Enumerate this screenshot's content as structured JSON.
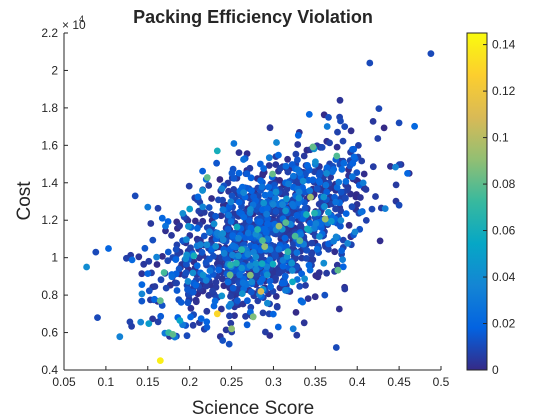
{
  "chart_data": {
    "type": "scatter",
    "title": "Packing Efficiency Violation",
    "xlabel": "Science Score",
    "ylabel": "Cost",
    "xlim": [
      0.05,
      0.5
    ],
    "ylim": [
      4000,
      22000
    ],
    "x_ticks": [
      "0.05",
      "0.1",
      "0.15",
      "0.2",
      "0.25",
      "0.3",
      "0.35",
      "0.4",
      "0.45",
      "0.5"
    ],
    "y_ticks": [
      "0.4",
      "0.6",
      "0.8",
      "1",
      "1.2",
      "1.4",
      "1.6",
      "1.8",
      "2",
      "2.2"
    ],
    "y_exponent_base": "× 10",
    "y_exponent_power": "4",
    "colorbar": {
      "colormap": "parula",
      "clim": [
        0,
        0.145
      ],
      "ticks": [
        "0",
        "0.02",
        "0.04",
        "0.06",
        "0.08",
        "0.1",
        "0.12",
        "0.14"
      ]
    },
    "grid": false,
    "cloud": {
      "n_points": 1400,
      "x_mean": 0.29,
      "x_sd": 0.065,
      "y_mean": 11300,
      "y_sd": 2300,
      "correlation": 0.55
    },
    "highlighted_points": [
      {
        "x": 0.488,
        "y": 20900,
        "c": 0.01
      },
      {
        "x": 0.415,
        "y": 20400,
        "c": 0.01
      },
      {
        "x": 0.088,
        "y": 10300,
        "c": 0.01
      },
      {
        "x": 0.077,
        "y": 9500,
        "c": 0.04
      },
      {
        "x": 0.09,
        "y": 6800,
        "c": 0.01
      },
      {
        "x": 0.165,
        "y": 4500,
        "c": 0.14
      },
      {
        "x": 0.233,
        "y": 15700,
        "c": 0.06
      },
      {
        "x": 0.233,
        "y": 7000,
        "c": 0.13
      },
      {
        "x": 0.285,
        "y": 8200,
        "c": 0.11
      },
      {
        "x": 0.205,
        "y": 10100,
        "c": 0.06
      },
      {
        "x": 0.25,
        "y": 6200,
        "c": 0.09
      },
      {
        "x": 0.375,
        "y": 5200,
        "c": 0.01
      },
      {
        "x": 0.38,
        "y": 17300,
        "c": 0.01
      },
      {
        "x": 0.45,
        "y": 17200,
        "c": 0.01
      },
      {
        "x": 0.385,
        "y": 17000,
        "c": 0.01
      },
      {
        "x": 0.15,
        "y": 12700,
        "c": 0.03
      },
      {
        "x": 0.135,
        "y": 13300,
        "c": 0.01
      },
      {
        "x": 0.46,
        "y": 14500,
        "c": 0.02
      },
      {
        "x": 0.45,
        "y": 12800,
        "c": 0.01
      },
      {
        "x": 0.2,
        "y": 12600,
        "c": 0.05
      },
      {
        "x": 0.18,
        "y": 5900,
        "c": 0.08
      },
      {
        "x": 0.175,
        "y": 6000,
        "c": 0.07
      },
      {
        "x": 0.165,
        "y": 7700,
        "c": 0.08
      }
    ]
  }
}
